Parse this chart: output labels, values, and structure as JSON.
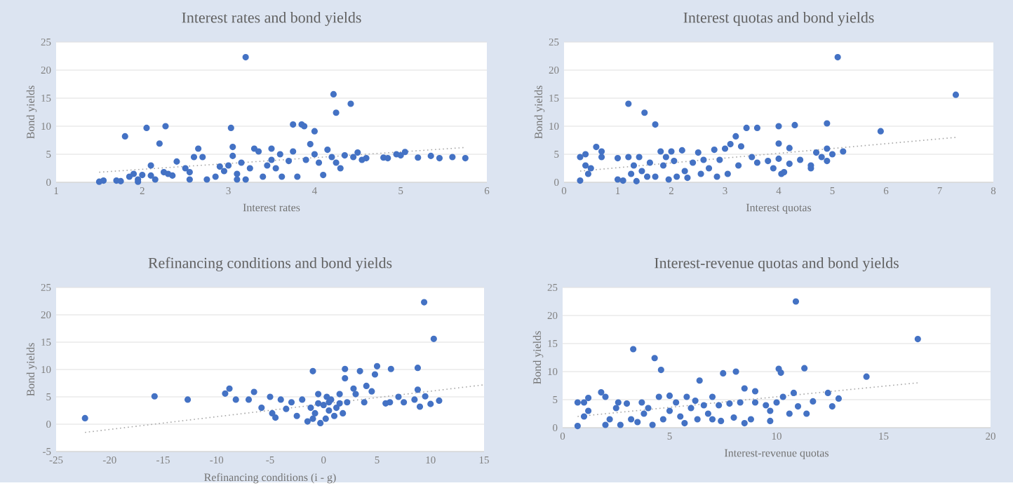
{
  "chart_data": [
    {
      "type": "scatter",
      "title": "Interest rates and bond yields",
      "xlabel": "Interest  rates",
      "ylabel": "Bond yields",
      "xlim": [
        1,
        6
      ],
      "xticks": [
        1,
        2,
        3,
        4,
        5,
        6
      ],
      "ylim": [
        0,
        25
      ],
      "yticks": [
        0,
        5,
        10,
        15,
        20,
        25
      ],
      "grid": "y",
      "marker": "circle",
      "series": [
        {
          "color": "#4472c4",
          "x": [
            1.5,
            1.55,
            1.7,
            1.75,
            1.8,
            1.85,
            1.9,
            1.95,
            1.95,
            2.0,
            2.05,
            2.1,
            2.1,
            2.15,
            2.2,
            2.25,
            2.27,
            2.3,
            2.35,
            2.4,
            2.5,
            2.55,
            2.55,
            2.6,
            2.65,
            2.7,
            2.75,
            2.85,
            2.9,
            2.95,
            3.0,
            3.03,
            3.05,
            3.05,
            3.1,
            3.1,
            3.15,
            3.2,
            3.2,
            3.25,
            3.3,
            3.35,
            3.4,
            3.45,
            3.5,
            3.5,
            3.55,
            3.6,
            3.62,
            3.7,
            3.75,
            3.75,
            3.8,
            3.85,
            3.88,
            3.9,
            3.95,
            4.0,
            4.0,
            4.05,
            4.1,
            4.15,
            4.2,
            4.22,
            4.25,
            4.25,
            4.3,
            4.35,
            4.42,
            4.45,
            4.5,
            4.55,
            4.6,
            4.8,
            4.85,
            4.95,
            5.0,
            5.05,
            5.2,
            5.35,
            5.45,
            5.6,
            5.75
          ],
          "values": [
            0.1,
            0.3,
            0.3,
            0.2,
            8.2,
            1.0,
            1.5,
            0.5,
            0.1,
            1.3,
            9.7,
            3.0,
            1.2,
            0.5,
            6.9,
            1.8,
            10.0,
            1.5,
            1.2,
            3.7,
            2.5,
            0.5,
            1.8,
            4.5,
            6.0,
            4.5,
            0.5,
            1.0,
            2.8,
            2.0,
            3.0,
            9.7,
            6.3,
            4.7,
            1.5,
            0.5,
            3.5,
            22.3,
            0.5,
            2.5,
            6.0,
            5.5,
            1.0,
            3.0,
            6.0,
            4.0,
            2.5,
            5.0,
            1.0,
            3.8,
            10.3,
            5.5,
            1.0,
            10.3,
            10.0,
            4.0,
            6.8,
            9.1,
            5.0,
            3.5,
            1.3,
            5.8,
            4.5,
            15.7,
            12.4,
            3.5,
            2.5,
            4.8,
            14.0,
            4.5,
            5.3,
            4.0,
            4.3,
            4.4,
            4.3,
            5.0,
            4.8,
            5.4,
            4.4,
            4.7,
            4.3,
            4.5,
            4.3
          ]
        },
        {
          "type": "line",
          "color": "#a5a5a5",
          "line_style": "dotted",
          "marker": "none",
          "x": [
            1.5,
            5.75
          ],
          "values": [
            1.8,
            6.2
          ]
        }
      ]
    },
    {
      "type": "scatter",
      "title": "Interest quotas and bond yields",
      "xlabel": "Interest  quotas",
      "ylabel": "Bond yields",
      "xlim": [
        0,
        8
      ],
      "xticks": [
        0,
        1,
        2,
        3,
        4,
        5,
        6,
        7,
        8
      ],
      "ylim": [
        0,
        25
      ],
      "yticks": [
        0,
        5,
        10,
        15,
        20,
        25
      ],
      "grid": "y",
      "marker": "circle",
      "series": [
        {
          "color": "#4472c4",
          "x": [
            0.3,
            0.3,
            0.4,
            0.4,
            0.45,
            0.5,
            0.6,
            0.7,
            0.7,
            1.0,
            1.0,
            1.1,
            1.2,
            1.2,
            1.25,
            1.3,
            1.35,
            1.4,
            1.45,
            1.5,
            1.55,
            1.6,
            1.7,
            1.7,
            1.8,
            1.85,
            1.9,
            1.95,
            2.0,
            2.05,
            2.1,
            2.2,
            2.25,
            2.3,
            2.4,
            2.5,
            2.55,
            2.6,
            2.7,
            2.8,
            2.85,
            2.9,
            3.0,
            3.05,
            3.1,
            3.2,
            3.25,
            3.3,
            3.4,
            3.5,
            3.6,
            3.6,
            3.8,
            3.9,
            4.0,
            4.0,
            4.0,
            4.05,
            4.1,
            4.2,
            4.2,
            4.3,
            4.4,
            4.6,
            4.6,
            4.7,
            4.8,
            4.9,
            4.9,
            4.9,
            5.0,
            5.1,
            5.2,
            5.9,
            7.3
          ],
          "values": [
            0.3,
            4.5,
            5.0,
            3.0,
            1.5,
            2.5,
            6.3,
            5.5,
            4.5,
            4.3,
            0.5,
            0.3,
            14.0,
            4.5,
            1.5,
            3.0,
            0.2,
            4.5,
            2.0,
            12.4,
            1.0,
            3.5,
            10.3,
            1.0,
            5.5,
            3.0,
            4.5,
            0.5,
            5.5,
            3.8,
            1.0,
            5.7,
            2.0,
            0.8,
            3.5,
            5.3,
            1.5,
            4.0,
            2.5,
            5.8,
            1.0,
            4.0,
            6.0,
            1.5,
            6.8,
            8.2,
            3.0,
            6.4,
            9.7,
            4.5,
            9.7,
            3.5,
            3.8,
            2.5,
            10.0,
            6.9,
            4.2,
            1.5,
            1.8,
            6.1,
            3.3,
            10.2,
            4.0,
            2.5,
            3.0,
            5.3,
            4.5,
            10.5,
            6.0,
            3.8,
            5.0,
            22.3,
            5.5,
            9.1,
            15.6
          ]
        },
        {
          "type": "line",
          "color": "#a5a5a5",
          "line_style": "dotted",
          "marker": "none",
          "x": [
            0.3,
            7.3
          ],
          "values": [
            2.0,
            8.0
          ]
        }
      ]
    },
    {
      "type": "scatter",
      "title": "Refinancing conditions and bond yields",
      "xlabel": "Refinancing  conditions (i - g)",
      "ylabel": "Bond yields",
      "xlim": [
        -25,
        15
      ],
      "xticks": [
        -25,
        -20,
        -15,
        -10,
        -5,
        0,
        5,
        10,
        15
      ],
      "ylim": [
        -5,
        25
      ],
      "yticks": [
        -5,
        0,
        5,
        10,
        15,
        20,
        25
      ],
      "grid": "y",
      "marker": "circle",
      "series": [
        {
          "color": "#4472c4",
          "x": [
            -22.3,
            -15.8,
            -12.7,
            -9.2,
            -8.8,
            -8.2,
            -7.0,
            -6.5,
            -5.8,
            -5.0,
            -4.8,
            -4.5,
            -4.0,
            -3.5,
            -3.0,
            -2.5,
            -2.0,
            -1.5,
            -1.2,
            -1.0,
            -1.0,
            -0.8,
            -0.5,
            -0.5,
            -0.3,
            0,
            0.2,
            0.3,
            0.5,
            0.5,
            0.7,
            1.0,
            1.2,
            1.5,
            1.5,
            1.8,
            2.0,
            2.0,
            2.2,
            2.8,
            3.0,
            3.4,
            3.8,
            4.0,
            4.5,
            4.8,
            5.0,
            5.8,
            6.2,
            6.3,
            7.0,
            7.5,
            8.5,
            8.8,
            8.8,
            9.0,
            9.4,
            9.5,
            10.0,
            10.3,
            10.8
          ],
          "values": [
            1.1,
            5.1,
            4.5,
            5.6,
            6.5,
            4.5,
            4.5,
            5.9,
            3.0,
            5.0,
            2.0,
            1.2,
            4.5,
            2.8,
            4.0,
            1.5,
            4.5,
            0.5,
            3.0,
            9.7,
            1.0,
            2.0,
            5.5,
            3.8,
            0.2,
            3.5,
            1.0,
            5.0,
            2.5,
            4.0,
            4.5,
            1.5,
            3.0,
            5.5,
            3.8,
            2.0,
            8.4,
            10.1,
            4.0,
            6.5,
            5.5,
            9.7,
            4.0,
            7.0,
            6.0,
            9.1,
            10.6,
            3.8,
            4.0,
            10.1,
            5.0,
            4.0,
            4.5,
            10.3,
            6.3,
            3.2,
            22.3,
            5.1,
            3.7,
            15.6,
            4.3
          ]
        },
        {
          "type": "line",
          "color": "#a5a5a5",
          "line_style": "dotted",
          "marker": "none",
          "x": [
            -22.3,
            15
          ],
          "values": [
            -1.5,
            7.2
          ]
        }
      ]
    },
    {
      "type": "scatter",
      "title": "Interest-revenue quotas and bond yields",
      "xlabel": "Interest-revenue   quotas",
      "ylabel": "Bond yields",
      "xlim": [
        0,
        20
      ],
      "xticks": [
        0,
        5,
        10,
        15,
        20
      ],
      "ylim": [
        0,
        25
      ],
      "yticks": [
        0,
        5,
        10,
        15,
        20,
        25
      ],
      "grid": "y",
      "marker": "circle",
      "series": [
        {
          "color": "#4472c4",
          "x": [
            0.7,
            0.7,
            1.0,
            1.0,
            1.2,
            1.2,
            1.8,
            2.0,
            2.0,
            2.2,
            2.5,
            2.6,
            2.7,
            3.0,
            3.2,
            3.3,
            3.5,
            3.7,
            3.8,
            4.0,
            4.2,
            4.3,
            4.5,
            4.6,
            4.7,
            5.0,
            5.0,
            5.3,
            5.5,
            5.7,
            5.8,
            6.0,
            6.2,
            6.3,
            6.4,
            6.6,
            6.8,
            7.0,
            7.0,
            7.3,
            7.4,
            7.5,
            7.8,
            8.0,
            8.1,
            8.3,
            8.5,
            8.5,
            8.8,
            9.0,
            9.0,
            9.5,
            9.7,
            9.7,
            10.0,
            10.1,
            10.2,
            10.3,
            10.6,
            10.8,
            10.9,
            11.0,
            11.3,
            11.4,
            11.7,
            12.4,
            12.6,
            12.9,
            14.2,
            16.6
          ],
          "values": [
            0.3,
            4.5,
            4.5,
            2.0,
            3.0,
            5.3,
            6.3,
            5.5,
            0.5,
            1.5,
            3.5,
            4.5,
            0.5,
            4.3,
            1.5,
            14.0,
            1.0,
            4.5,
            2.5,
            3.5,
            0.5,
            12.4,
            5.5,
            10.3,
            1.5,
            5.7,
            3.0,
            4.5,
            2.0,
            0.8,
            5.5,
            3.5,
            4.8,
            1.5,
            8.4,
            4.0,
            2.5,
            5.5,
            1.5,
            4.0,
            1.2,
            9.7,
            4.3,
            1.8,
            10.0,
            4.5,
            0.8,
            7.0,
            1.5,
            6.5,
            4.5,
            4.0,
            1.2,
            3.0,
            4.5,
            10.5,
            9.8,
            5.5,
            2.5,
            6.2,
            22.5,
            3.8,
            10.6,
            2.5,
            4.7,
            6.2,
            3.8,
            5.2,
            9.1,
            15.8
          ]
        },
        {
          "type": "line",
          "color": "#a5a5a5",
          "line_style": "dotted",
          "marker": "none",
          "x": [
            0.7,
            16.6
          ],
          "values": [
            2.0,
            8.0
          ]
        }
      ]
    }
  ]
}
